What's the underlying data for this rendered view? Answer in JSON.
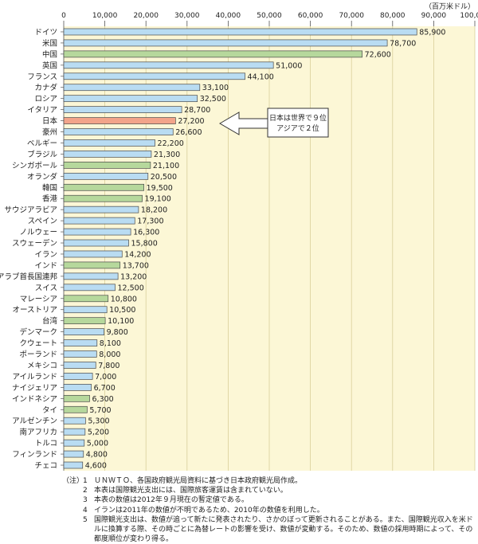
{
  "chart_data": {
    "type": "bar",
    "orientation": "horizontal",
    "unit_label": "（百万米ドル）",
    "xlim": [
      0,
      100000
    ],
    "x_ticks": [
      "0",
      "10,000",
      "20,000",
      "30,000",
      "40,000",
      "50,000",
      "60,000",
      "70,000",
      "80,000",
      "90,000",
      "100,000"
    ],
    "categories": [
      "ドイツ",
      "米国",
      "中国",
      "英国",
      "フランス",
      "カナダ",
      "ロシア",
      "イタリア",
      "日本",
      "豪州",
      "ベルギー",
      "ブラジル",
      "シンガポール",
      "オランダ",
      "韓国",
      "香港",
      "サウジアラビア",
      "スペイン",
      "ノルウェー",
      "スウェーデン",
      "イラン",
      "インド",
      "アラブ首長国連邦",
      "スイス",
      "マレーシア",
      "オーストリア",
      "台湾",
      "デンマーク",
      "クウェート",
      "ポーランド",
      "メキシコ",
      "アイルランド",
      "ナイジェリア",
      "インドネシア",
      "タイ",
      "アルゼンチン",
      "南アフリカ",
      "トルコ",
      "フィンランド",
      "チェコ"
    ],
    "values": [
      85900,
      78700,
      72600,
      51000,
      44100,
      33100,
      32500,
      28700,
      27200,
      26600,
      22200,
      21300,
      21100,
      20500,
      19500,
      19100,
      18200,
      17300,
      16300,
      15800,
      14200,
      13700,
      13200,
      12500,
      10800,
      10500,
      10100,
      9800,
      8100,
      8000,
      7800,
      7000,
      6700,
      6300,
      5700,
      5300,
      5200,
      5000,
      4800,
      4600
    ],
    "value_labels": [
      "85,900",
      "78,700",
      "72,600",
      "51,000",
      "44,100",
      "33,100",
      "32,500",
      "28,700",
      "27,200",
      "26,600",
      "22,200",
      "21,300",
      "21,100",
      "20,500",
      "19,500",
      "19,100",
      "18,200",
      "17,300",
      "16,300",
      "15,800",
      "14,200",
      "13,700",
      "13,200",
      "12,500",
      "10,800",
      "10,500",
      "10,100",
      "9,800",
      "8,100",
      "8,000",
      "7,800",
      "7,000",
      "6,700",
      "6,300",
      "5,700",
      "5,300",
      "5,200",
      "5,000",
      "4,800",
      "4,600"
    ],
    "bar_groups": [
      "other",
      "other",
      "asia",
      "other",
      "other",
      "other",
      "other",
      "other",
      "japan",
      "other",
      "other",
      "other",
      "asia",
      "other",
      "asia",
      "asia",
      "other",
      "other",
      "other",
      "other",
      "other",
      "asia",
      "other",
      "other",
      "asia",
      "other",
      "asia",
      "other",
      "other",
      "other",
      "other",
      "other",
      "other",
      "asia",
      "asia",
      "other",
      "other",
      "other",
      "other",
      "other"
    ],
    "colors": {
      "other": "#b9dcf2",
      "asia": "#b6d89c",
      "japan": "#f2a48a",
      "bar_edge": "#4a4a4a",
      "plot_background": "#fcf7d6",
      "grid": "#d9cf9a"
    },
    "annotation": [
      "日本は世界で９位",
      "アジアで２位"
    ],
    "annotation_target": "日本",
    "grid": true
  },
  "notes": {
    "label": "（注）",
    "items": [
      {
        "num": "1",
        "text": "ＵＮＷＴＯ、各国政府観光局資料に基づき日本政府観光局作成。"
      },
      {
        "num": "2",
        "text": "本表は国際観光支出には、国際旅客運賃は含まれていない。"
      },
      {
        "num": "3",
        "text": "本表の数値は2012年９月現在の暫定値である。"
      },
      {
        "num": "4",
        "text": "イランは2011年の数値が不明であるため、2010年の数値を利用した。"
      },
      {
        "num": "5",
        "text": "国際観光支出は、数値が追って新たに発表されたり、さかのぼって更新されることがある。また、国際観光収入を米ドルに換算する際、その時ごとに為替レートの影響を受け、数値が変動する。そのため、数値の採用時期によって、その都度順位が変わり得る。"
      }
    ]
  }
}
